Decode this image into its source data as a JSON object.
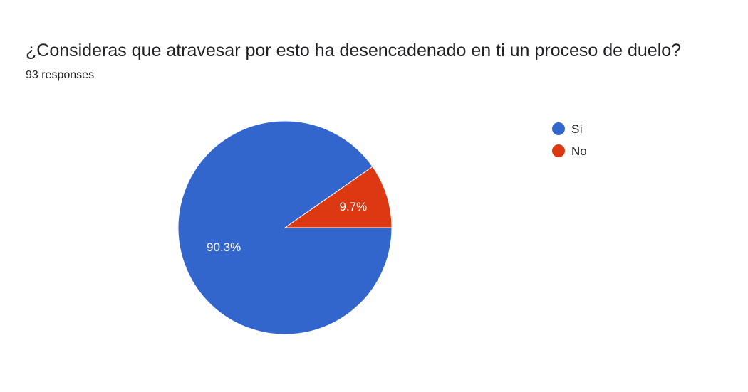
{
  "question": {
    "title": "¿Consideras que atravesar por esto ha desencadenado en ti un proceso de duelo?",
    "responses_text": "93 responses"
  },
  "chart_data": {
    "type": "pie",
    "categories": [
      "Sí",
      "No"
    ],
    "values": [
      90.3,
      9.7
    ],
    "labels": [
      "90.3%",
      "9.7%"
    ],
    "colors": [
      "#3366cc",
      "#dc3912"
    ],
    "legend_position": "right"
  }
}
